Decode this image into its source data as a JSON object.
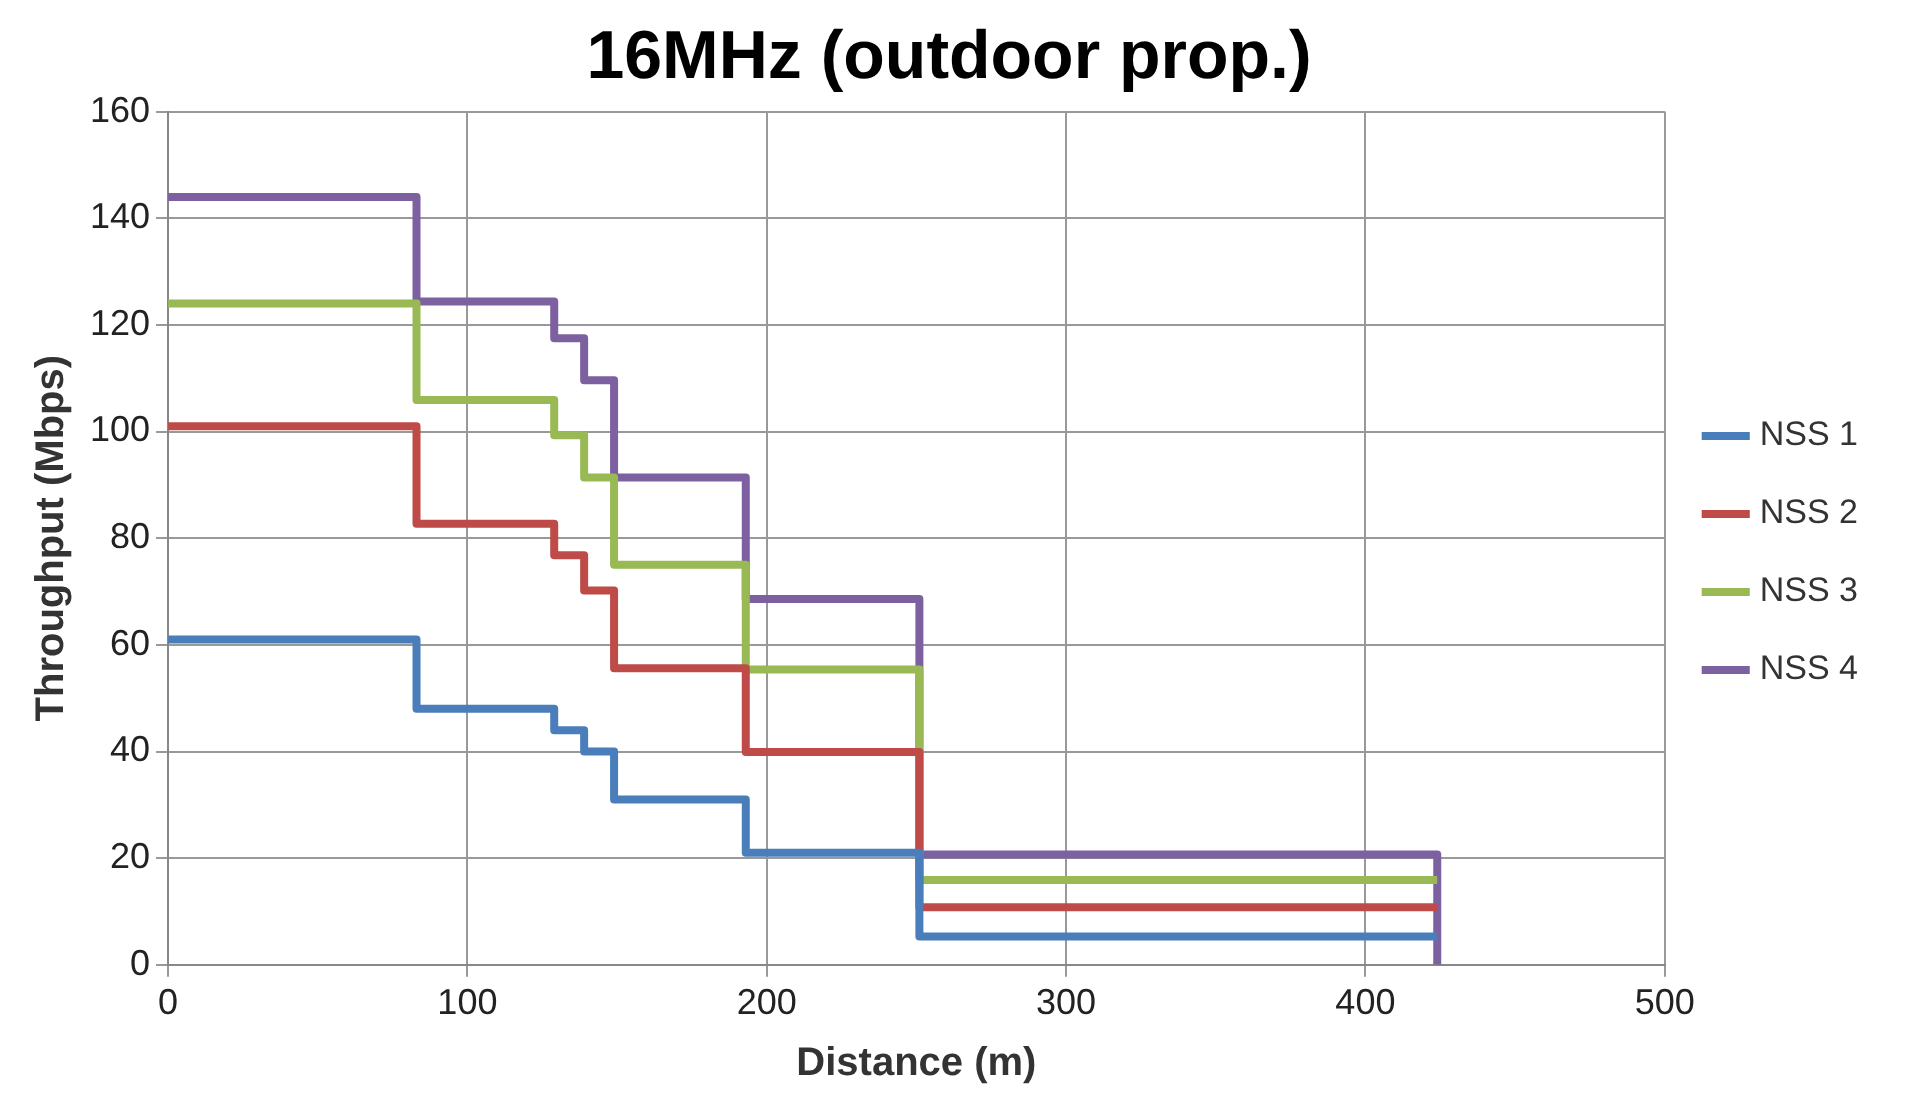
{
  "chart_data": {
    "type": "step",
    "title": "16MHz (outdoor prop.)",
    "xlabel": "Distance (m)",
    "ylabel": "Throughput (Mbps)",
    "xlim": [
      0,
      500
    ],
    "xticks": [
      0,
      100,
      200,
      300,
      400,
      500
    ],
    "ylim": [
      0,
      160
    ],
    "yticks": [
      0,
      20,
      40,
      60,
      80,
      100,
      120,
      140,
      160
    ],
    "grid": true,
    "legend": "right",
    "marker": "none",
    "line_style": "solid",
    "series": [
      {
        "name": "NSS 1",
        "color": "#4a7ebb",
        "x": [
          0,
          83,
          129,
          139,
          149,
          193,
          251,
          424
        ],
        "values": [
          61,
          48,
          44,
          40,
          31,
          21,
          5.3,
          5.3
        ]
      },
      {
        "name": "NSS 2",
        "color": "#be4b48",
        "x": [
          0,
          83,
          129,
          139,
          149,
          193,
          251,
          424
        ],
        "values": [
          101,
          82.7,
          76.8,
          70.2,
          55.6,
          39.9,
          10.8,
          10.8
        ]
      },
      {
        "name": "NSS 3",
        "color": "#98b954",
        "x": [
          0,
          83,
          129,
          139,
          149,
          193,
          251,
          424
        ],
        "values": [
          124,
          105.9,
          99.3,
          91.4,
          75,
          55.4,
          15.9,
          15.9
        ]
      },
      {
        "name": "NSS 4",
        "color": "#7d60a0",
        "x": [
          0,
          83,
          129,
          139,
          149,
          193,
          251,
          424
        ],
        "values": [
          144,
          124.4,
          117.5,
          109.6,
          91.4,
          68.6,
          20.7,
          0
        ]
      }
    ]
  }
}
